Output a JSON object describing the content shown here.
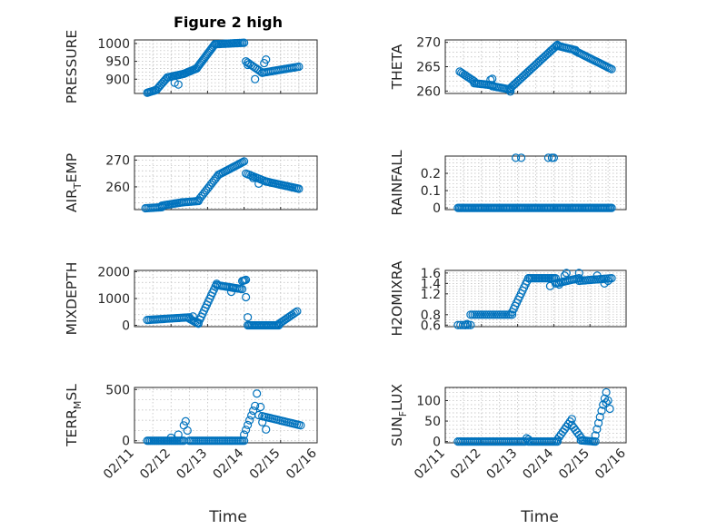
{
  "figure": {
    "title": "Figure 2 high",
    "x_axis_label": "Time",
    "x_tick_labels": [
      "02/11",
      "02/12",
      "02/13",
      "02/14",
      "02/15",
      "02/16"
    ],
    "marker_color": "#0072BD",
    "background": "#ffffff"
  },
  "chart_data": [
    {
      "id": "pressure",
      "type": "scatter",
      "marker": "circle",
      "grid": true,
      "title": "Figure 2 high",
      "ylabel": "PRESSURE",
      "ylabel_sub": "",
      "xlabel": "",
      "xlim": [
        0,
        5
      ],
      "ylim": [
        860,
        1010
      ],
      "yticks": [
        900,
        950,
        1000
      ],
      "ytick_labels": [
        "900",
        "950",
        "1000"
      ],
      "segments": [
        {
          "x0": 0.35,
          "x1": 0.6,
          "y0": 862,
          "y1": 870,
          "n": 8
        },
        {
          "x0": 0.6,
          "x1": 0.9,
          "y0": 870,
          "y1": 905,
          "n": 9
        },
        {
          "x0": 0.9,
          "x1": 1.35,
          "y0": 905,
          "y1": 915,
          "n": 12
        },
        {
          "x0": 1.35,
          "x1": 1.7,
          "y0": 915,
          "y1": 930,
          "n": 10
        },
        {
          "x0": 1.7,
          "x1": 2.2,
          "y0": 930,
          "y1": 998,
          "n": 18
        },
        {
          "x0": 2.2,
          "x1": 3.0,
          "y0": 998,
          "y1": 1002,
          "n": 20
        },
        {
          "x0": 3.05,
          "x1": 3.5,
          "y0": 950,
          "y1": 918,
          "n": 10
        },
        {
          "x0": 3.5,
          "x1": 4.5,
          "y0": 918,
          "y1": 935,
          "n": 22
        }
      ],
      "outliers": [
        [
          1.1,
          890
        ],
        [
          1.2,
          885
        ],
        [
          3.3,
          900
        ],
        [
          3.55,
          945
        ],
        [
          3.6,
          955
        ],
        [
          3.1,
          940
        ]
      ]
    },
    {
      "id": "theta",
      "type": "scatter",
      "marker": "circle",
      "grid": true,
      "ylabel": "THETA",
      "ylabel_sub": "",
      "xlabel": "",
      "xlim": [
        0,
        5
      ],
      "ylim": [
        259.5,
        270.5
      ],
      "yticks": [
        260,
        265,
        270
      ],
      "ytick_labels": [
        "260",
        "265",
        "270"
      ],
      "segments": [
        {
          "x0": 0.4,
          "x1": 0.8,
          "y0": 264,
          "y1": 262,
          "n": 10
        },
        {
          "x0": 0.8,
          "x1": 1.3,
          "y0": 261.6,
          "y1": 261.2,
          "n": 12
        },
        {
          "x0": 1.3,
          "x1": 1.8,
          "y0": 261,
          "y1": 260.3,
          "n": 12
        },
        {
          "x0": 1.8,
          "x1": 3.1,
          "y0": 260.6,
          "y1": 269.5,
          "n": 32
        },
        {
          "x0": 3.1,
          "x1": 3.6,
          "y0": 269.3,
          "y1": 268.4,
          "n": 12
        },
        {
          "x0": 3.6,
          "x1": 4.6,
          "y0": 268.2,
          "y1": 264.5,
          "n": 24
        }
      ],
      "outliers": [
        [
          1.25,
          262.3
        ],
        [
          1.3,
          262.5
        ],
        [
          1.8,
          259.9
        ]
      ]
    },
    {
      "id": "air_temp",
      "type": "scatter",
      "marker": "circle",
      "grid": true,
      "ylabel": "AIR",
      "ylabel_sub": "T",
      "ylabel_suffix": "EMP",
      "xlabel": "",
      "xlim": [
        0,
        5
      ],
      "ylim": [
        251.5,
        271.5
      ],
      "yticks": [
        260,
        270
      ],
      "ytick_labels": [
        "260",
        "270"
      ],
      "segments": [
        {
          "x0": 0.3,
          "x1": 0.75,
          "y0": 252,
          "y1": 252.4,
          "n": 10
        },
        {
          "x0": 0.75,
          "x1": 1.3,
          "y0": 253,
          "y1": 254.2,
          "n": 14
        },
        {
          "x0": 1.3,
          "x1": 1.75,
          "y0": 254.2,
          "y1": 254.7,
          "n": 10
        },
        {
          "x0": 1.75,
          "x1": 2.3,
          "y0": 255,
          "y1": 264.5,
          "n": 14
        },
        {
          "x0": 2.3,
          "x1": 3.0,
          "y0": 264.5,
          "y1": 269.5,
          "n": 18
        },
        {
          "x0": 3.05,
          "x1": 3.6,
          "y0": 265,
          "y1": 262,
          "n": 12
        },
        {
          "x0": 3.6,
          "x1": 4.5,
          "y0": 262,
          "y1": 259.3,
          "n": 22
        }
      ],
      "outliers": [
        [
          3.25,
          263.3
        ],
        [
          3.4,
          261.2
        ]
      ]
    },
    {
      "id": "rainfall",
      "type": "scatter",
      "marker": "circle",
      "grid": true,
      "ylabel": "RAINFALL",
      "ylabel_sub": "",
      "xlabel": "",
      "xlim": [
        0,
        5
      ],
      "ylim": [
        -0.01,
        0.3
      ],
      "yticks": [
        0,
        0.1,
        0.2
      ],
      "ytick_labels": [
        "0",
        "0.1",
        "0.2"
      ],
      "segments": [
        {
          "x0": 0.35,
          "x1": 4.6,
          "y0": 0,
          "y1": 0,
          "n": 110
        }
      ],
      "outliers": [
        [
          1.95,
          0.29
        ],
        [
          2.1,
          0.29
        ],
        [
          2.85,
          0.29
        ],
        [
          2.95,
          0.29
        ],
        [
          3.0,
          0.29
        ]
      ]
    },
    {
      "id": "mixdepth",
      "type": "scatter",
      "marker": "circle",
      "grid": true,
      "ylabel": "MIXDEPTH",
      "ylabel_sub": "",
      "xlabel": "",
      "xlim": [
        0,
        5
      ],
      "ylim": [
        -50,
        2050
      ],
      "yticks": [
        0,
        1000,
        2000
      ],
      "ytick_labels": [
        "0",
        "1000",
        "2000"
      ],
      "segments": [
        {
          "x0": 0.35,
          "x1": 1.5,
          "y0": 200,
          "y1": 300,
          "n": 24
        },
        {
          "x0": 1.5,
          "x1": 1.75,
          "y0": 250,
          "y1": 60,
          "n": 7
        },
        {
          "x0": 1.75,
          "x1": 2.25,
          "y0": 100,
          "y1": 1550,
          "n": 14
        },
        {
          "x0": 2.25,
          "x1": 2.95,
          "y0": 1500,
          "y1": 1350,
          "n": 16
        },
        {
          "x0": 2.95,
          "x1": 3.05,
          "y0": 1650,
          "y1": 1700,
          "n": 4
        },
        {
          "x0": 3.1,
          "x1": 3.95,
          "y0": 0,
          "y1": 0,
          "n": 22
        },
        {
          "x0": 3.95,
          "x1": 4.45,
          "y0": 50,
          "y1": 520,
          "n": 12
        }
      ],
      "outliers": [
        [
          3.05,
          1050
        ],
        [
          3.1,
          300
        ],
        [
          2.65,
          1250
        ],
        [
          2.7,
          1400
        ],
        [
          1.6,
          330
        ]
      ]
    },
    {
      "id": "h2omixra",
      "type": "scatter",
      "marker": "circle",
      "grid": true,
      "ylabel": "H2OMIXRA",
      "ylabel_sub": "",
      "xlabel": "",
      "xlim": [
        0,
        5
      ],
      "ylim": [
        0.57,
        1.65
      ],
      "yticks": [
        0.6,
        0.8,
        1.2,
        1.4,
        1.6
      ],
      "ytick_labels": [
        "0.6",
        "0.8",
        "1.2",
        "1.4",
        "1.6"
      ],
      "segments": [
        {
          "x0": 0.35,
          "x1": 0.7,
          "y0": 0.6,
          "y1": 0.6,
          "n": 6
        },
        {
          "x0": 0.7,
          "x1": 1.85,
          "y0": 0.8,
          "y1": 0.8,
          "n": 22
        },
        {
          "x0": 1.85,
          "x1": 2.3,
          "y0": 0.85,
          "y1": 1.5,
          "n": 12
        },
        {
          "x0": 2.3,
          "x1": 3.05,
          "y0": 1.5,
          "y1": 1.5,
          "n": 18
        },
        {
          "x0": 3.05,
          "x1": 3.7,
          "y0": 1.4,
          "y1": 1.5,
          "n": 14
        },
        {
          "x0": 3.7,
          "x1": 4.6,
          "y0": 1.45,
          "y1": 1.5,
          "n": 18
        }
      ],
      "outliers": [
        [
          0.6,
          0.62
        ],
        [
          0.55,
          0.6
        ],
        [
          2.9,
          1.35
        ],
        [
          3.15,
          1.38
        ],
        [
          3.3,
          1.55
        ],
        [
          3.35,
          1.6
        ],
        [
          3.7,
          1.6
        ],
        [
          4.2,
          1.55
        ],
        [
          4.4,
          1.4
        ],
        [
          4.5,
          1.45
        ]
      ]
    },
    {
      "id": "terr_msl",
      "type": "scatter",
      "marker": "circle",
      "grid": true,
      "ylabel": "TERR",
      "ylabel_sub": "M",
      "ylabel_suffix": "SL",
      "xlabel": "Time",
      "xlim": [
        0,
        5
      ],
      "ylim": [
        -20,
        520
      ],
      "yticks": [
        0,
        500
      ],
      "ytick_labels": [
        "0",
        "500"
      ],
      "segments": [
        {
          "x0": 0.35,
          "x1": 1.35,
          "y0": 0,
          "y1": 0,
          "n": 24
        },
        {
          "x0": 1.5,
          "x1": 3.0,
          "y0": 0,
          "y1": 0,
          "n": 34
        },
        {
          "x0": 3.0,
          "x1": 3.3,
          "y0": 60,
          "y1": 340,
          "n": 7
        },
        {
          "x0": 3.5,
          "x1": 4.55,
          "y0": 240,
          "y1": 150,
          "n": 20
        }
      ],
      "outliers": [
        [
          1.0,
          30
        ],
        [
          1.2,
          60
        ],
        [
          1.35,
          150
        ],
        [
          1.4,
          190
        ],
        [
          1.45,
          100
        ],
        [
          3.35,
          460
        ],
        [
          3.45,
          330
        ],
        [
          3.4,
          250
        ],
        [
          3.5,
          180
        ],
        [
          3.6,
          110
        ]
      ]
    },
    {
      "id": "sun_flux",
      "type": "scatter",
      "marker": "circle",
      "grid": true,
      "ylabel": "SUN",
      "ylabel_sub": "F",
      "ylabel_suffix": "LUX",
      "xlabel": "Time",
      "xlim": [
        0,
        5
      ],
      "ylim": [
        -3,
        132
      ],
      "yticks": [
        0,
        50,
        100
      ],
      "ytick_labels": [
        "0",
        "50",
        "100"
      ],
      "segments": [
        {
          "x0": 0.35,
          "x1": 2.2,
          "y0": 0,
          "y1": 0,
          "n": 40
        },
        {
          "x0": 2.3,
          "x1": 3.1,
          "y0": 0,
          "y1": 0,
          "n": 18
        },
        {
          "x0": 3.1,
          "x1": 3.5,
          "y0": 5,
          "y1": 55,
          "n": 9
        },
        {
          "x0": 3.5,
          "x1": 3.75,
          "y0": 40,
          "y1": 10,
          "n": 6
        },
        {
          "x0": 3.75,
          "x1": 4.15,
          "y0": 3,
          "y1": 0,
          "n": 10
        },
        {
          "x0": 4.15,
          "x1": 4.45,
          "y0": 15,
          "y1": 120,
          "n": 8
        }
      ],
      "outliers": [
        [
          2.25,
          8
        ],
        [
          2.3,
          5
        ],
        [
          4.5,
          100
        ],
        [
          4.55,
          80
        ],
        [
          4.45,
          95
        ]
      ]
    }
  ]
}
